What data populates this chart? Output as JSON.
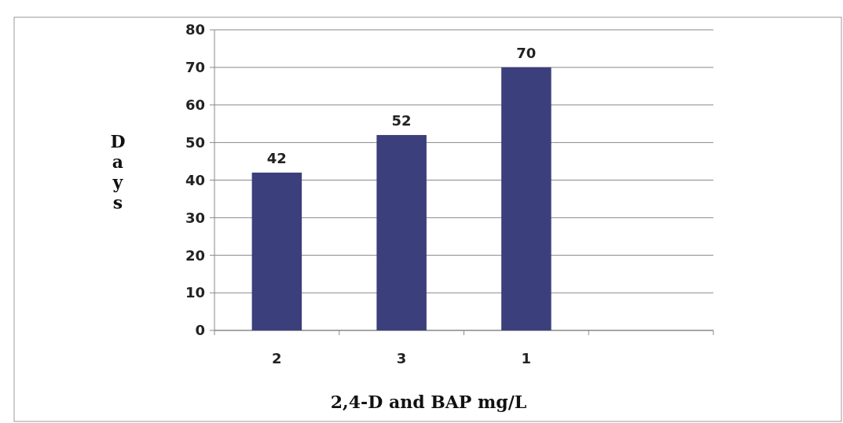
{
  "chart_data": {
    "type": "bar",
    "xlabel": "2,4-D and BAP mg/L",
    "ylabel": "Days",
    "categories": [
      "2",
      "3",
      "1",
      null
    ],
    "values": [
      42,
      52,
      70,
      null
    ],
    "color": "#3b3f7c",
    "ylim": [
      0,
      80
    ],
    "yticks": [
      0,
      10,
      20,
      30,
      40,
      50,
      60,
      70,
      80
    ],
    "grid": "y",
    "data_labels": true
  }
}
